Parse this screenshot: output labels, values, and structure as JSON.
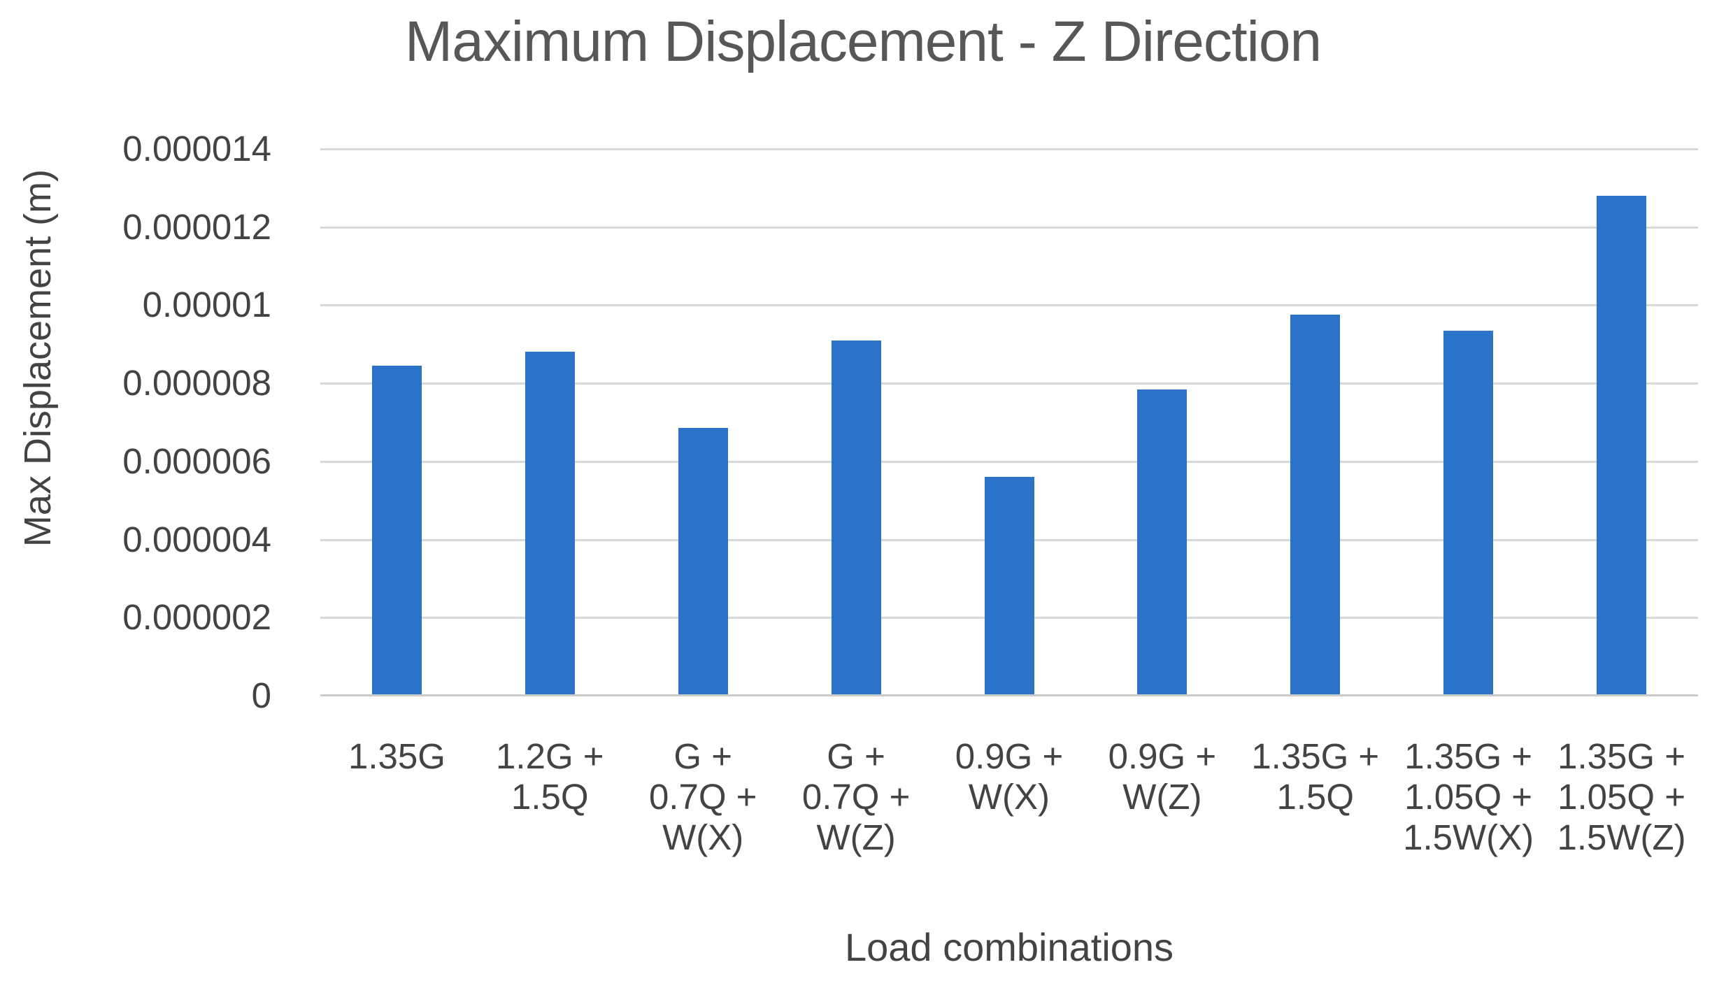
{
  "chart_data": {
    "type": "bar",
    "title": "Maximum Displacement - Z Direction",
    "xlabel": "Load combinations",
    "ylabel": "Max Displacement (m)",
    "categories": [
      "1.35G",
      "1.2G +\n1.5Q",
      "G +\n0.7Q +\nW(X)",
      "G +\n0.7Q +\nW(Z)",
      "0.9G +\nW(X)",
      "0.9G +\nW(Z)",
      "1.35G +\n1.5Q",
      "1.35G +\n1.05Q +\n1.5W(X)",
      "1.35G +\n1.05Q +\n1.5W(Z)"
    ],
    "values": [
      8.45e-06,
      8.8e-06,
      6.85e-06,
      9.1e-06,
      5.6e-06,
      7.85e-06,
      9.75e-06,
      9.35e-06,
      1.28e-05
    ],
    "ylim": [
      0,
      1.4e-05
    ],
    "ytick_step": 2e-06,
    "ytick_labels": [
      "0",
      "0.000002",
      "0.000004",
      "0.000006",
      "0.000008",
      "0.00001",
      "0.000012",
      "0.000014"
    ],
    "grid": "horizontal",
    "legend": "none",
    "bar_color": "#2B73C8",
    "gridline_color": "#D8D8D8",
    "axis_line_color": "#CBCBCB",
    "text_color": "#434343",
    "title_color": "#57575A"
  }
}
